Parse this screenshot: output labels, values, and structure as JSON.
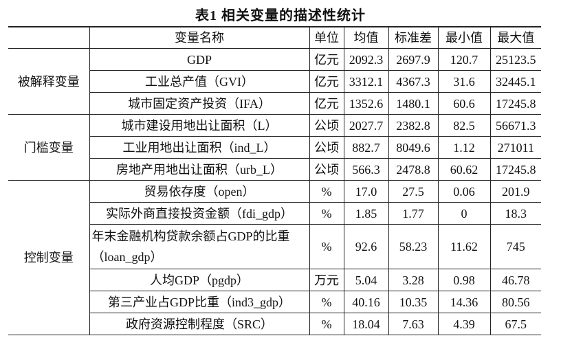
{
  "title": "表1  相关变量的描述性统计",
  "table": {
    "header": [
      "变量名称",
      "单位",
      "均值",
      "标准差",
      "最小值",
      "最大值"
    ],
    "groups": [
      {
        "label": "被解释变量",
        "rows": [
          [
            "GDP",
            "亿元",
            "2092.3",
            "2697.9",
            "120.7",
            "25123.5"
          ],
          [
            "工业总产值（GVI）",
            "亿元",
            "3312.1",
            "4367.3",
            "31.6",
            "32445.1"
          ],
          [
            "城市固定资产投资（IFA）",
            "亿元",
            "1352.6",
            "1480.1",
            "60.6",
            "17245.8"
          ]
        ]
      },
      {
        "label": "门槛变量",
        "rows": [
          [
            "城市建设用地出让面积（L）",
            "公顷",
            "2027.7",
            "2382.8",
            "82.5",
            "56671.3"
          ],
          [
            "工业用地出让面积（ind_L）",
            "公顷",
            "882.7",
            "8049.6",
            "1.12",
            "271011"
          ],
          [
            "房地产用地出让面积（urb_L）",
            "公顷",
            "566.3",
            "2478.8",
            "60.62",
            "17245.8"
          ]
        ]
      },
      {
        "label": "控制变量",
        "rows": [
          [
            "贸易依存度（open）",
            "%",
            "17.0",
            "27.5",
            "0.06",
            "201.9"
          ],
          [
            "实际外商直接投资金额（fdi_gdp）",
            "%",
            "1.85",
            "1.77",
            "0",
            "18.3"
          ],
          [
            "年末金融机构贷款余额占GDP的比重（loan_gdp）",
            "%",
            "92.6",
            "58.23",
            "11.62",
            "745"
          ],
          [
            "人均GDP（pgdp）",
            "万元",
            "5.04",
            "3.28",
            "0.98",
            "46.78"
          ],
          [
            "第三产业占GDP比重（ind3_gdp）",
            "%",
            "40.16",
            "10.35",
            "14.36",
            "80.56"
          ],
          [
            "政府资源控制程度（SRC）",
            "%",
            "18.04",
            "7.63",
            "4.39",
            "67.5"
          ]
        ]
      }
    ]
  }
}
